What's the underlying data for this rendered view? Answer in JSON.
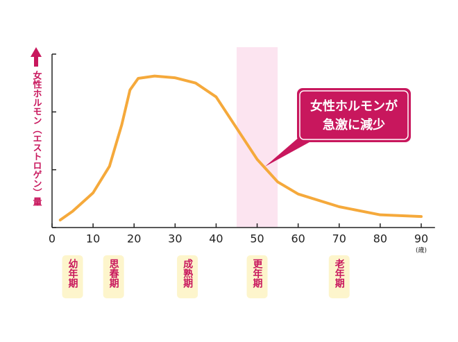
{
  "chart_data": {
    "type": "line",
    "y_label": "女性ホルモン（エストロゲン）量",
    "x_unit": "(歳)",
    "x": [
      2,
      5,
      10,
      14,
      17,
      19,
      21,
      25,
      30,
      35,
      40,
      45,
      50,
      55,
      60,
      70,
      80,
      90
    ],
    "values": [
      0.13,
      0.28,
      0.6,
      1.06,
      1.78,
      2.38,
      2.58,
      2.62,
      2.59,
      2.5,
      2.26,
      1.72,
      1.18,
      0.79,
      0.58,
      0.36,
      0.22,
      0.19
    ],
    "color": "#f5a93b",
    "xlim": [
      0,
      92
    ],
    "xticks": [
      0,
      10,
      20,
      30,
      40,
      50,
      60,
      70,
      80,
      90
    ],
    "ylim": [
      0,
      3
    ],
    "yticks": [
      0,
      1,
      2,
      3
    ],
    "highlight": [
      45,
      55
    ],
    "highlight_color": "#fce4f0",
    "callout": [
      "女性ホルモンが",
      "急激に減少"
    ],
    "stages": [
      {
        "label": "幼年期",
        "x": 5
      },
      {
        "label": "思春期",
        "x": 15
      },
      {
        "label": "成熟期",
        "x": 33
      },
      {
        "label": "更年期",
        "x": 50
      },
      {
        "label": "老年期",
        "x": 70
      }
    ]
  }
}
